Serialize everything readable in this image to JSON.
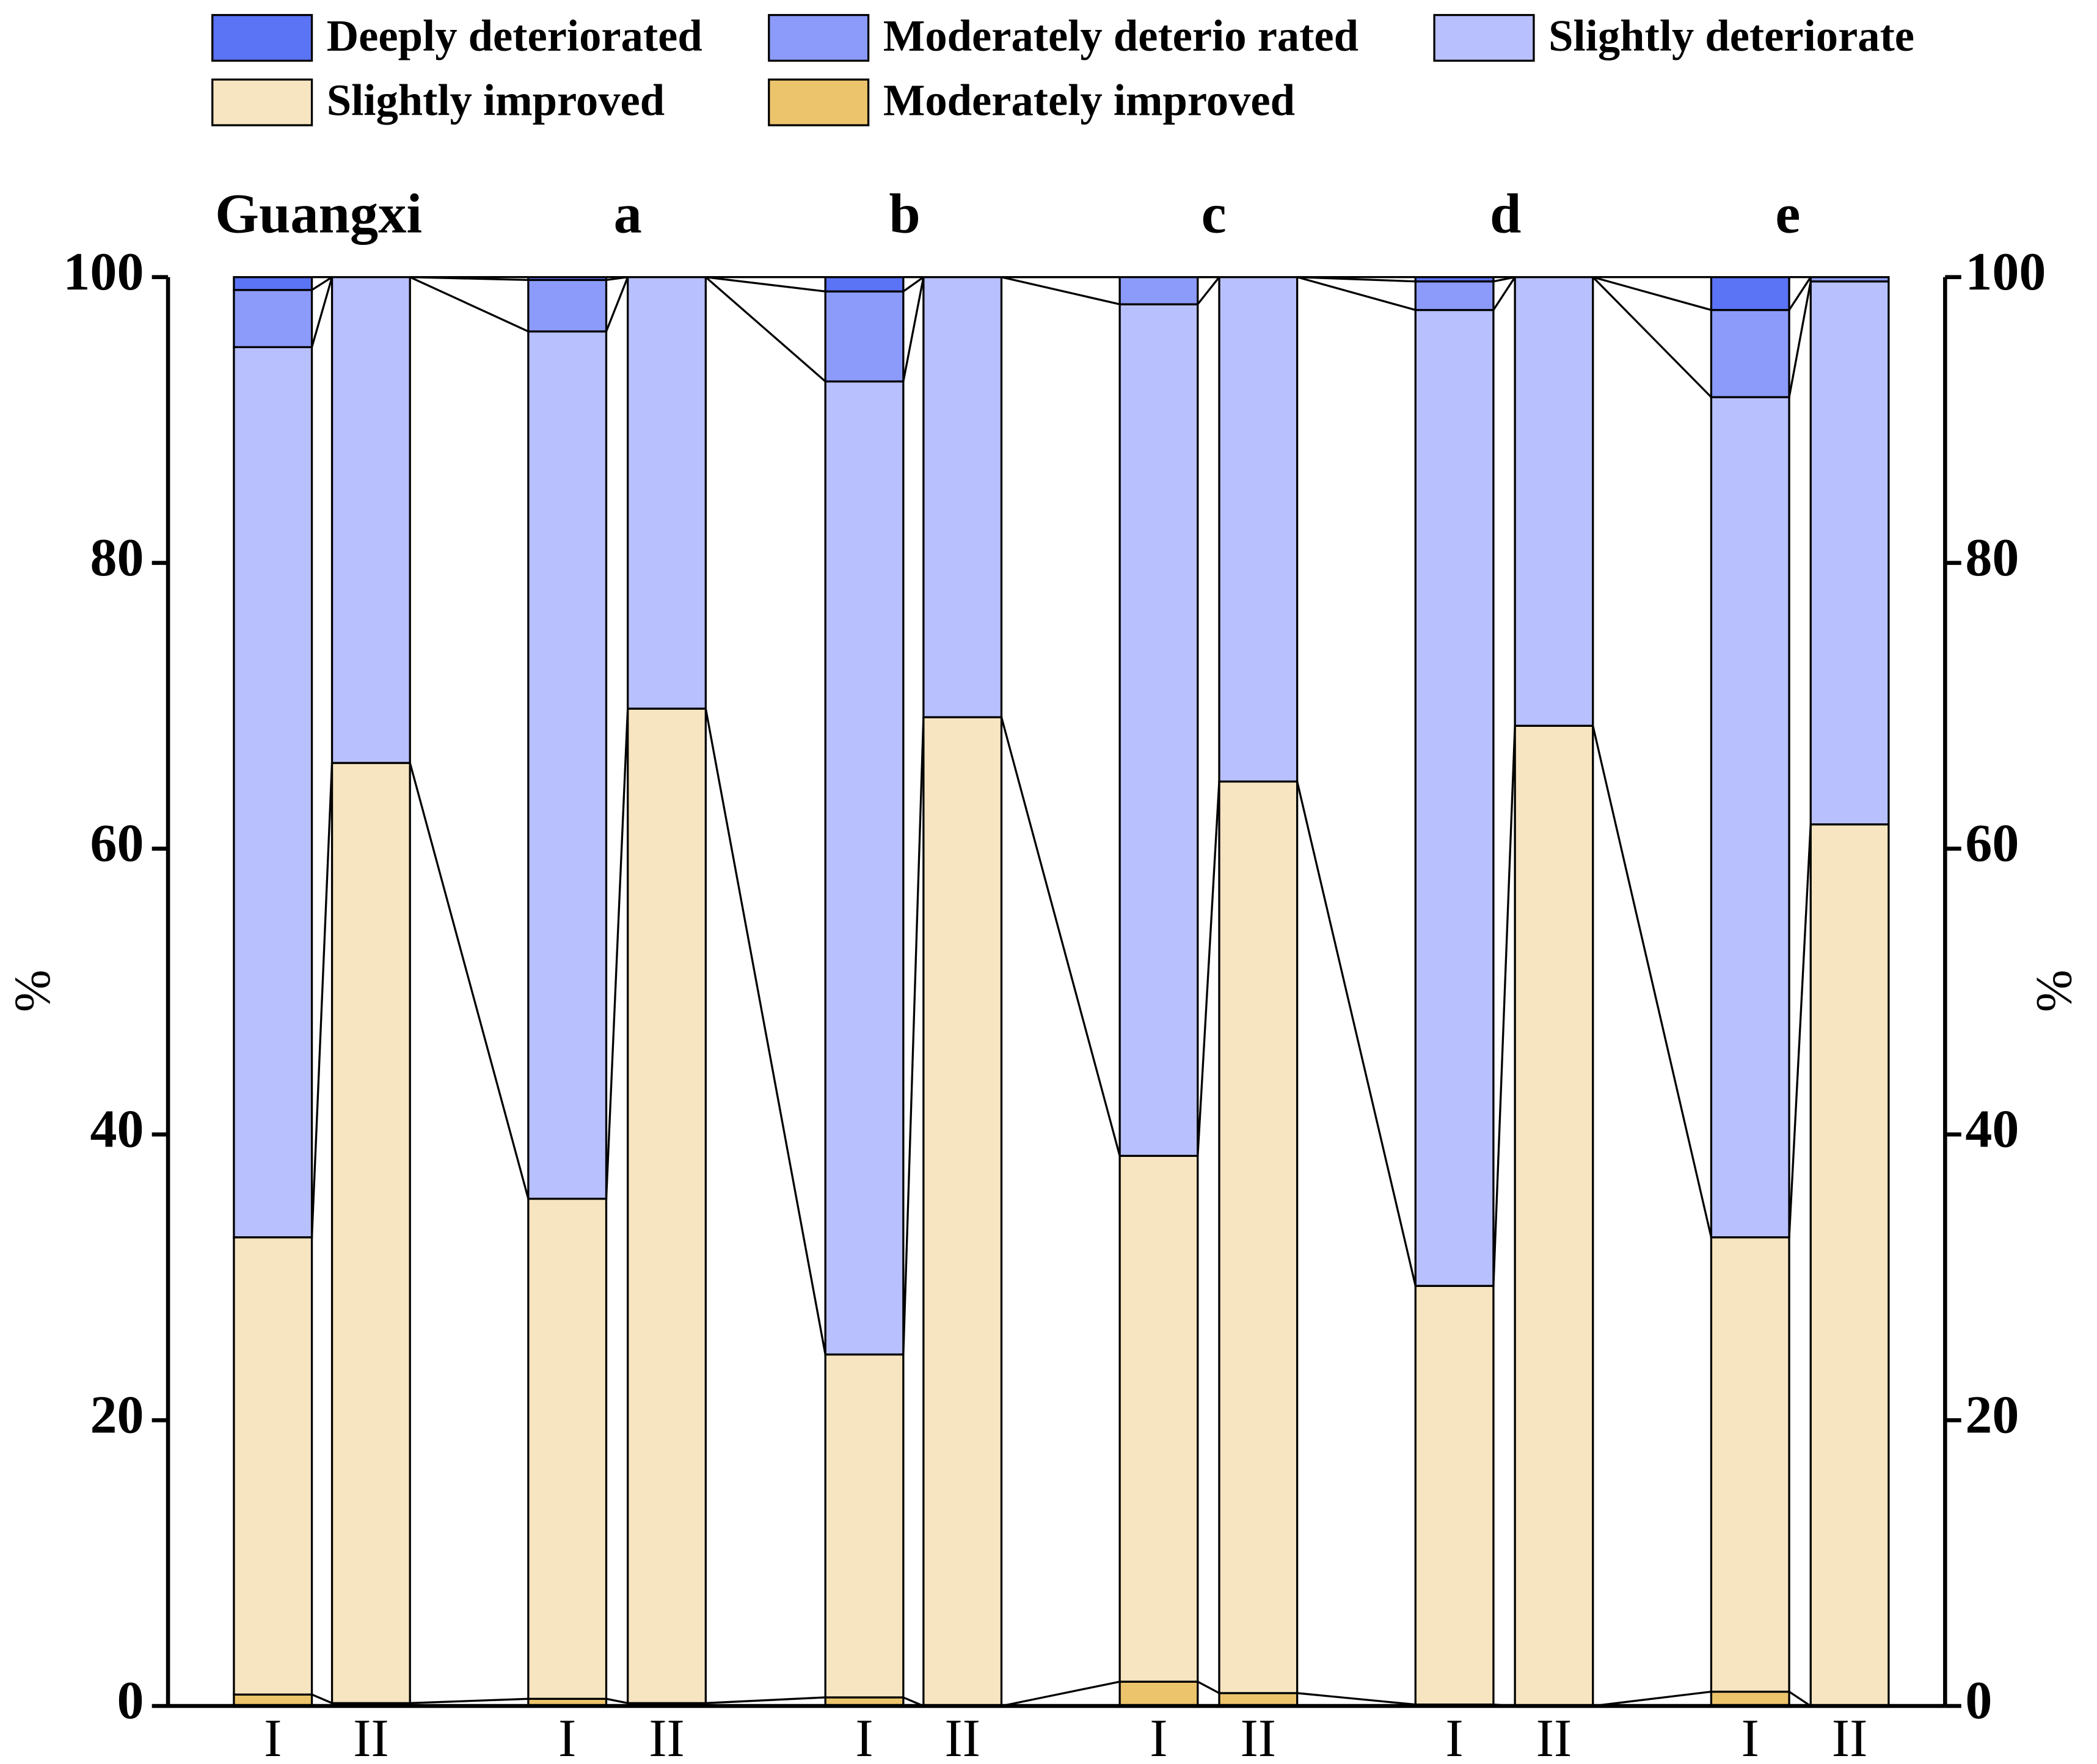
{
  "chart_data": {
    "type": "stacked_bar",
    "groups": [
      "Guangxi",
      "a",
      "b",
      "c",
      "d",
      "e"
    ],
    "categories": [
      "I",
      "II",
      "I",
      "II",
      "I",
      "II",
      "I",
      "II",
      "I",
      "II",
      "I",
      "II"
    ],
    "series": [
      {
        "name": "Deeply deteriorated",
        "color": "#5b73f5",
        "values": [
          0.9,
          0,
          0.2,
          0,
          1.0,
          0,
          0,
          0,
          0.3,
          0,
          2.3,
          0
        ]
      },
      {
        "name": "Moderately deterio rated",
        "color": "#8c9bfa",
        "values": [
          4.0,
          0,
          3.6,
          0,
          6.3,
          0,
          1.9,
          0,
          2.0,
          0,
          6.1,
          0.3
        ]
      },
      {
        "name": "Slightly deteriorate",
        "color": "#b8c0fd",
        "values": [
          62.3,
          34.0,
          60.7,
          30.2,
          68.1,
          30.8,
          59.6,
          35.3,
          68.3,
          31.4,
          58.8,
          38.0
        ]
      },
      {
        "name": "Slightly improved",
        "color": "#f7e5c1",
        "values": [
          32.0,
          65.8,
          35.0,
          69.6,
          24.0,
          69.2,
          36.8,
          63.8,
          29.3,
          68.6,
          31.8,
          61.7
        ]
      },
      {
        "name": "Moderately improved",
        "color": "#ecc46c",
        "values": [
          0.8,
          0.2,
          0.5,
          0.2,
          0.6,
          0,
          1.7,
          0.9,
          0.1,
          0,
          1.0,
          0
        ]
      }
    ],
    "ylabel": "%",
    "ylim": [
      0,
      100
    ],
    "yticks": [
      0,
      20,
      40,
      60,
      80,
      100
    ],
    "y2lim": [
      0,
      100
    ],
    "y2ticks": [
      0,
      20,
      40,
      60,
      80,
      100
    ],
    "legend": "top"
  }
}
